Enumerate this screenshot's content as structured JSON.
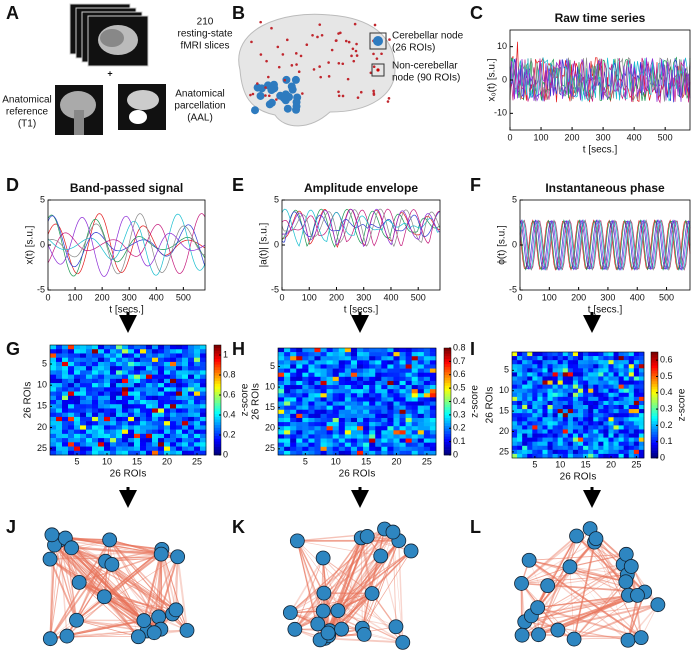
{
  "panels": {
    "A": {
      "letter": "A",
      "slices_label": [
        "210",
        "resting-state",
        "fMRI slices"
      ],
      "plus": "+",
      "reference_label": [
        "Anatomical",
        "reference",
        "(T1)"
      ],
      "parcellation_label": [
        "Anatomical",
        "parcellation",
        "(AAL)"
      ]
    },
    "B": {
      "letter": "B",
      "cerebellar_label": [
        "Cerebellar node",
        "(26 ROIs)"
      ],
      "noncerebellar_label": [
        "Non-cerebellar",
        "node (90 ROIs)"
      ]
    },
    "C": {
      "letter": "C",
      "title": "Raw time series",
      "ylabel": "x₀(t) [s.u.]",
      "xlabel": "t [secs.]",
      "xlim": [
        0,
        580
      ],
      "xticks": [
        0,
        100,
        200,
        300,
        400,
        500
      ],
      "ylim": [
        -15,
        15
      ],
      "yticks": [
        -10,
        0,
        10
      ]
    },
    "D": {
      "letter": "D",
      "title": "Band-passed signal",
      "ylabel": "x(t) [s.u.]",
      "xlabel": "t [secs.]",
      "xlim": [
        0,
        580
      ],
      "xticks": [
        0,
        100,
        200,
        300,
        400,
        500
      ],
      "ylim": [
        -5,
        5
      ],
      "yticks": [
        -5,
        0,
        5
      ]
    },
    "E": {
      "letter": "E",
      "title": "Amplitude envelope",
      "ylabel": "|a(t)| [s.u.]",
      "xlabel": "t [secs.]",
      "xlim": [
        0,
        580
      ],
      "xticks": [
        0,
        100,
        200,
        300,
        400,
        500
      ],
      "ylim": [
        -5,
        5
      ],
      "yticks": [
        -5,
        0,
        5
      ]
    },
    "F": {
      "letter": "F",
      "title": "Instantaneous phase",
      "ylabel": "ϕ(t) [s.u.]",
      "xlabel": "t [secs.]",
      "xlim": [
        0,
        580
      ],
      "xticks": [
        0,
        100,
        200,
        300,
        400,
        500
      ],
      "ylim": [
        -5,
        5
      ],
      "yticks": [
        -5,
        0,
        5
      ]
    },
    "G": {
      "letter": "G",
      "xlabel": "26 ROIs",
      "ylabel": "26 ROIs",
      "xticks": [
        5,
        10,
        15,
        20,
        25
      ],
      "yticks": [
        5,
        10,
        15,
        20,
        25
      ],
      "cbar_label": "z-score",
      "cbar_lim": [
        0,
        1.1
      ],
      "cbar_ticks": [
        0,
        0.2,
        0.4,
        0.6,
        0.8,
        1
      ]
    },
    "H": {
      "letter": "H",
      "xlabel": "26 ROIs",
      "ylabel": "26 ROIs",
      "xticks": [
        5,
        10,
        15,
        20,
        25
      ],
      "yticks": [
        5,
        10,
        15,
        20,
        25
      ],
      "cbar_label": "z-score",
      "cbar_lim": [
        0,
        0.8
      ],
      "cbar_ticks": [
        0,
        0.1,
        0.2,
        0.3,
        0.4,
        0.5,
        0.6,
        0.7,
        0.8
      ]
    },
    "I": {
      "letter": "I",
      "xlabel": "26 ROIs",
      "ylabel": "26 ROIs",
      "xticks": [
        5,
        10,
        15,
        20,
        25
      ],
      "yticks": [
        5,
        10,
        15,
        20,
        25
      ],
      "cbar_label": "z-score",
      "cbar_lim": [
        0,
        0.65
      ],
      "cbar_ticks": [
        0,
        0.1,
        0.2,
        0.3,
        0.4,
        0.5,
        0.6
      ]
    },
    "J": {
      "letter": "J"
    },
    "K": {
      "letter": "K"
    },
    "L": {
      "letter": "L"
    }
  }
}
